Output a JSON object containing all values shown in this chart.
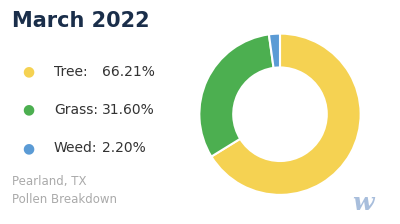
{
  "title": "March 2022",
  "title_color": "#1a2e4a",
  "title_fontsize": 15,
  "slices": [
    66.21,
    31.6,
    2.2
  ],
  "labels": [
    "Tree:",
    "Grass:",
    "Weed:"
  ],
  "percentages": [
    "66.21%",
    "31.60%",
    "2.20%"
  ],
  "colors": [
    "#f5d252",
    "#4caf50",
    "#5b9bd5"
  ],
  "startangle": 90,
  "donut_width": 0.42,
  "subtitle_text": "Pearland, TX\nPollen Breakdown",
  "subtitle_color": "#aaaaaa",
  "subtitle_fontsize": 8.5,
  "background_color": "#ffffff",
  "legend_fontsize": 10,
  "legend_label_color": "#333333",
  "watermark_color": "#a8bedc",
  "watermark_fontsize": 18
}
